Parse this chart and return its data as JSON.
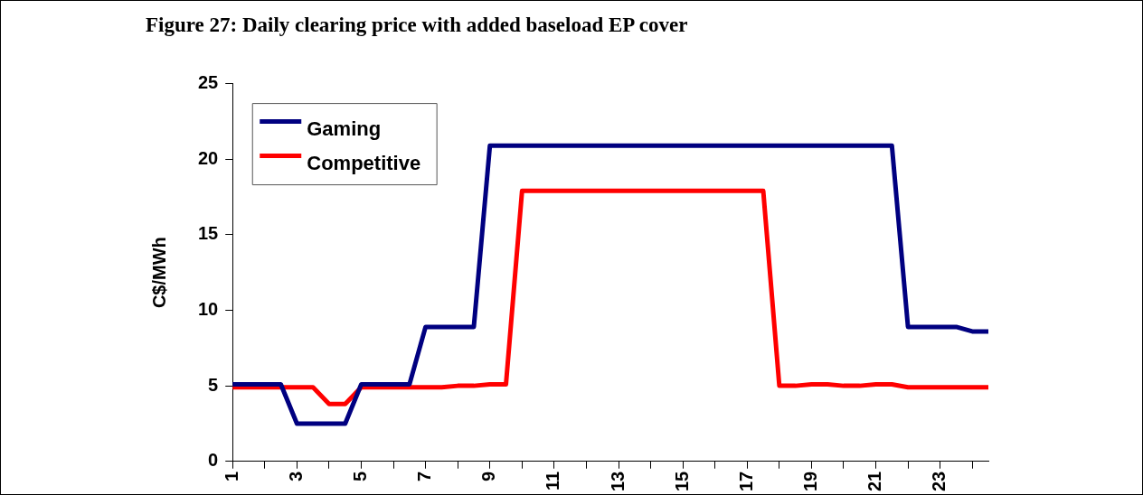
{
  "chart_data": {
    "type": "line",
    "title": "Figure 27: Daily clearing price with added baseload EP cover",
    "ylabel": "C$/MWh",
    "x": [
      1,
      1.5,
      2,
      2.5,
      3,
      3.5,
      4,
      4.5,
      5,
      5.5,
      6,
      6.5,
      7,
      7.5,
      8,
      8.5,
      9,
      9.5,
      10,
      10.5,
      11,
      11.5,
      12,
      12.5,
      13,
      13.5,
      14,
      14.5,
      15,
      15.5,
      16,
      16.5,
      17,
      17.5,
      18,
      18.5,
      19,
      19.5,
      20,
      20.5,
      21,
      21.5,
      22,
      22.5,
      23,
      23.5,
      24,
      24.5
    ],
    "series": [
      {
        "name": "Gaming",
        "color": "#000080",
        "values": [
          5.1,
          5.1,
          5.1,
          5.1,
          2.5,
          2.5,
          2.5,
          2.5,
          5.1,
          5.1,
          5.1,
          5.1,
          8.9,
          8.9,
          8.9,
          8.9,
          20.9,
          20.9,
          20.9,
          20.9,
          20.9,
          20.9,
          20.9,
          20.9,
          20.9,
          20.9,
          20.9,
          20.9,
          20.9,
          20.9,
          20.9,
          20.9,
          20.9,
          20.9,
          20.9,
          20.9,
          20.9,
          20.9,
          20.9,
          20.9,
          20.9,
          20.9,
          8.9,
          8.9,
          8.9,
          8.9,
          8.6,
          8.6
        ]
      },
      {
        "name": "Competitive",
        "color": "#ff0000",
        "values": [
          4.9,
          4.9,
          4.9,
          4.9,
          4.9,
          4.9,
          3.8,
          3.8,
          4.9,
          4.9,
          4.9,
          4.9,
          4.9,
          4.9,
          5.0,
          5.0,
          5.1,
          5.1,
          17.9,
          17.9,
          17.9,
          17.9,
          17.9,
          17.9,
          17.9,
          17.9,
          17.9,
          17.9,
          17.9,
          17.9,
          17.9,
          17.9,
          17.9,
          17.9,
          5.0,
          5.0,
          5.1,
          5.1,
          5.0,
          5.0,
          5.1,
          5.1,
          4.9,
          4.9,
          4.9,
          4.9,
          4.9,
          4.9
        ]
      }
    ],
    "xlim": [
      1,
      24.5
    ],
    "xticks": [
      1,
      {
        "value": 2,
        "label": null
      },
      3,
      {
        "value": 4,
        "label": null
      },
      5,
      {
        "value": 6,
        "label": null
      },
      7,
      {
        "value": 8,
        "label": null
      },
      9,
      {
        "value": 10,
        "label": null
      },
      11,
      {
        "value": 12,
        "label": null
      },
      13,
      {
        "value": 14,
        "label": null
      },
      15,
      {
        "value": 16,
        "label": null
      },
      17,
      {
        "value": 18,
        "label": null
      },
      19,
      {
        "value": 20,
        "label": null
      },
      21,
      {
        "value": 22,
        "label": null
      },
      23,
      {
        "value": 24,
        "label": null
      }
    ],
    "ylim": [
      0,
      25
    ],
    "yticks": [
      0,
      5,
      10,
      15,
      20,
      25
    ],
    "grid": false,
    "legend": "top left",
    "marker": "none",
    "line_style": "solid"
  }
}
